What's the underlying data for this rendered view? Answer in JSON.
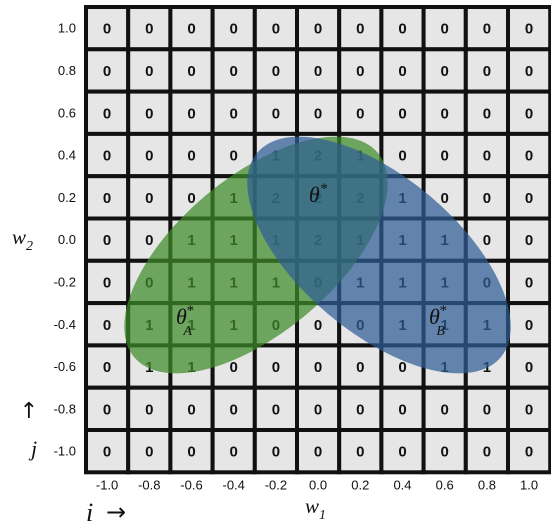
{
  "grid": {
    "rows": [
      [
        0,
        0,
        0,
        0,
        0,
        0,
        0,
        0,
        0,
        0,
        0
      ],
      [
        0,
        0,
        0,
        0,
        0,
        0,
        0,
        0,
        0,
        0,
        0
      ],
      [
        0,
        0,
        0,
        0,
        0,
        0,
        0,
        0,
        0,
        0,
        0
      ],
      [
        0,
        0,
        0,
        0,
        1,
        2,
        1,
        0,
        0,
        0,
        0
      ],
      [
        0,
        0,
        0,
        1,
        2,
        2,
        2,
        1,
        0,
        0,
        0
      ],
      [
        0,
        0,
        1,
        1,
        1,
        2,
        1,
        1,
        1,
        0,
        0
      ],
      [
        0,
        0,
        1,
        1,
        1,
        0,
        1,
        1,
        1,
        0,
        0
      ],
      [
        0,
        1,
        1,
        1,
        0,
        0,
        0,
        1,
        1,
        1,
        0
      ],
      [
        0,
        1,
        1,
        0,
        0,
        0,
        0,
        0,
        1,
        1,
        0
      ],
      [
        0,
        0,
        0,
        0,
        0,
        0,
        0,
        0,
        0,
        0,
        0
      ],
      [
        0,
        0,
        0,
        0,
        0,
        0,
        0,
        0,
        0,
        0,
        0
      ]
    ]
  },
  "axes": {
    "x_ticks": [
      "-1.0",
      "-0.8",
      "-0.6",
      "-0.4",
      "-0.2",
      "0.0",
      "0.2",
      "0.4",
      "0.6",
      "0.8",
      "1.0"
    ],
    "y_ticks": [
      "1.0",
      "0.8",
      "0.6",
      "0.4",
      "0.2",
      "0.0",
      "-0.2",
      "-0.4",
      "-0.6",
      "-0.8",
      "-1.0"
    ],
    "x_label_base": "w",
    "x_label_sub": "1",
    "y_label_base": "w",
    "y_label_sub": "2",
    "i_label": "i",
    "i_arrow": "→",
    "j_label": "j",
    "j_arrow": "↑"
  },
  "annotations": {
    "theta_center_base": "θ",
    "theta_center_sup": "*",
    "theta_a_base": "θ",
    "theta_a_sup": "*",
    "theta_a_sub": "A",
    "theta_b_base": "θ",
    "theta_b_sup": "*",
    "theta_b_sub": "B"
  },
  "regions": {
    "a_color": "#3f8a2a",
    "b_color": "#2f5e96"
  }
}
